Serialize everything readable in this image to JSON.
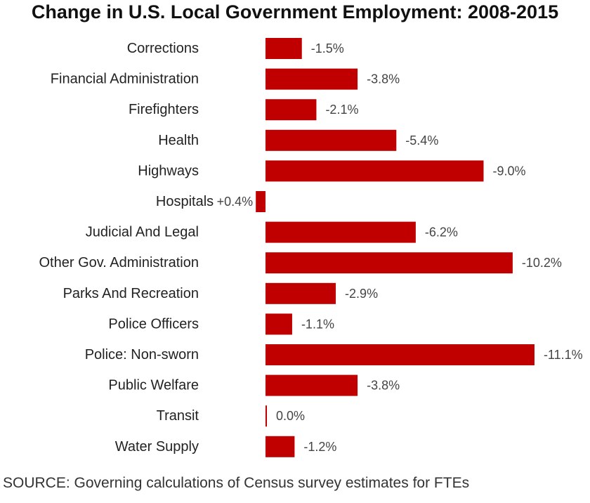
{
  "chart_data": {
    "type": "bar",
    "orientation": "horizontal",
    "title": "Change in U.S. Local Government Employment: 2008-2015",
    "categories": [
      "Corrections",
      "Financial Administration",
      "Firefighters",
      "Health",
      "Highways",
      "Hospitals",
      "Judicial And Legal",
      "Other Gov. Administration",
      "Parks And Recreation",
      "Police Officers",
      "Police: Non-sworn",
      "Public Welfare",
      "Transit",
      "Water Supply"
    ],
    "values": [
      -1.5,
      -3.8,
      -2.1,
      -5.4,
      -9.0,
      0.4,
      -6.2,
      -10.2,
      -2.9,
      -1.1,
      -11.1,
      -3.8,
      0.0,
      -1.2
    ],
    "value_labels": [
      "-1.5%",
      "-3.8%",
      "-2.1%",
      "-5.4%",
      "-9.0%",
      "+0.4%",
      "-6.2%",
      "-10.2%",
      "-2.9%",
      "-1.1%",
      "-11.1%",
      "-3.8%",
      "0.0%",
      "-1.2%"
    ],
    "unit": "%",
    "xlabel": "",
    "ylabel": "",
    "grid": false,
    "legend": false,
    "bar_color": "#c00000",
    "source": "SOURCE: Governing calculations of Census survey estimates for FTEs"
  }
}
